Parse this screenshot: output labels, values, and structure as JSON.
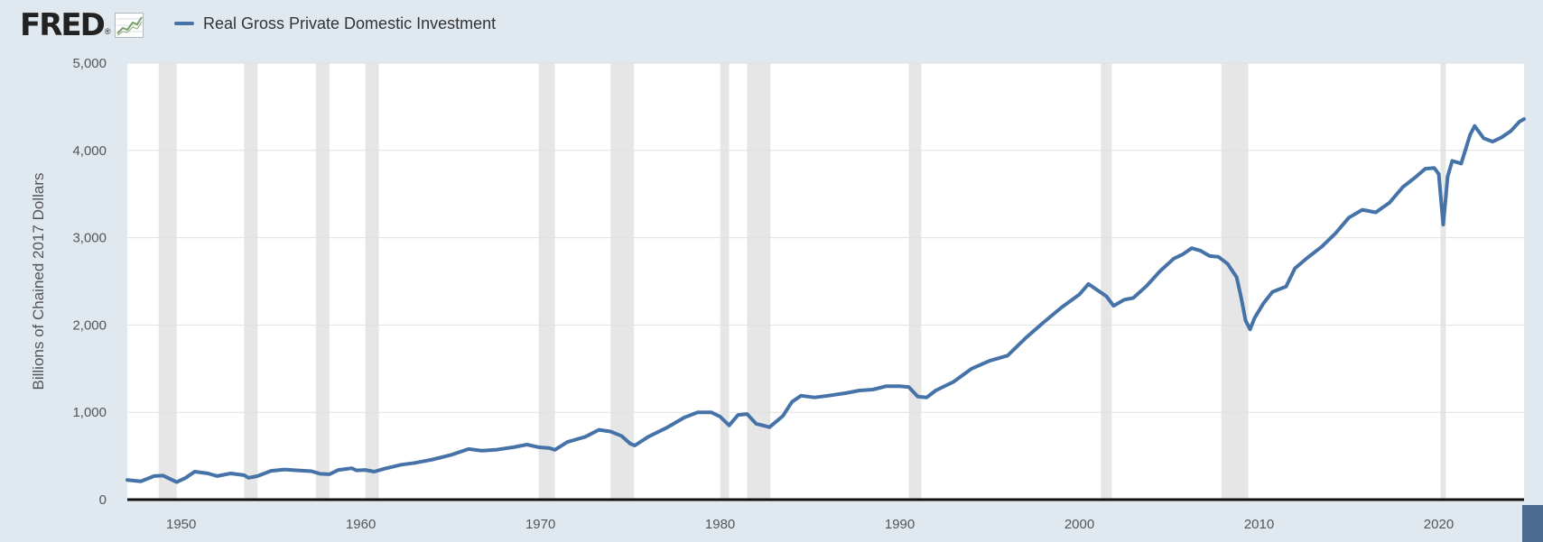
{
  "header": {
    "logo_text": "FRED",
    "logo_registered": "®",
    "logo_icon": "sparkline-chart-icon",
    "series_name": "Real Gross Private Domestic Investment"
  },
  "colors": {
    "series": "#4572a7",
    "background": "#e1e9f0",
    "plot": "#ffffff",
    "recession": "#e6e6e6",
    "grid": "#e0e0e0"
  },
  "chart_data": {
    "type": "line",
    "title": "",
    "xlabel": "",
    "ylabel": "Billions of Chained 2017 Dollars",
    "xlim": [
      1947.0,
      2024.75
    ],
    "ylim": [
      0,
      5000
    ],
    "grid": true,
    "legend_placement": "top-left",
    "x_ticks": [
      1950,
      1960,
      1970,
      1980,
      1990,
      2000,
      2010,
      2020
    ],
    "x_tick_labels": [
      "1950",
      "1960",
      "1970",
      "1980",
      "1990",
      "2000",
      "2010",
      "2020"
    ],
    "y_ticks": [
      0,
      1000,
      2000,
      3000,
      4000,
      5000
    ],
    "y_tick_labels": [
      "0",
      "1,000",
      "2,000",
      "3,000",
      "4,000",
      "5,000"
    ],
    "recessions": [
      [
        1948.75,
        1949.75
      ],
      [
        1953.5,
        1954.25
      ],
      [
        1957.5,
        1958.25
      ],
      [
        1960.25,
        1961.0
      ],
      [
        1969.9,
        1970.8
      ],
      [
        1973.9,
        1975.2
      ],
      [
        1980.0,
        1980.5
      ],
      [
        1981.5,
        1982.8
      ],
      [
        1990.5,
        1991.2
      ],
      [
        2001.2,
        2001.8
      ],
      [
        2007.9,
        2009.4
      ],
      [
        2020.1,
        2020.4
      ]
    ],
    "series": [
      {
        "name": "Real Gross Private Domestic Investment",
        "x": [
          1947.0,
          1947.75,
          1948.5,
          1949.0,
          1949.5,
          1949.75,
          1950.25,
          1950.75,
          1951.5,
          1952.0,
          1952.75,
          1953.5,
          1953.75,
          1954.25,
          1955.0,
          1955.75,
          1956.5,
          1957.25,
          1957.75,
          1958.25,
          1958.75,
          1959.5,
          1959.75,
          1960.25,
          1960.75,
          1961.25,
          1962.25,
          1963.0,
          1964.0,
          1965.0,
          1966.0,
          1966.75,
          1967.5,
          1968.5,
          1969.25,
          1969.9,
          1970.5,
          1970.8,
          1971.5,
          1972.5,
          1973.25,
          1973.9,
          1974.5,
          1975.0,
          1975.25,
          1976.0,
          1977.0,
          1978.0,
          1978.75,
          1979.5,
          1980.0,
          1980.5,
          1981.0,
          1981.5,
          1982.0,
          1982.75,
          1983.5,
          1984.0,
          1984.5,
          1985.25,
          1986.0,
          1987.0,
          1987.75,
          1988.5,
          1989.25,
          1990.0,
          1990.5,
          1991.0,
          1991.5,
          1992.0,
          1993.0,
          1994.0,
          1995.0,
          1996.0,
          1997.0,
          1998.0,
          1999.0,
          2000.0,
          2000.5,
          2001.0,
          2001.5,
          2001.9,
          2002.5,
          2003.0,
          2003.75,
          2004.5,
          2005.25,
          2005.75,
          2006.25,
          2006.75,
          2007.25,
          2007.75,
          2008.25,
          2008.75,
          2009.0,
          2009.25,
          2009.5,
          2009.75,
          2010.25,
          2010.75,
          2011.5,
          2012.0,
          2012.75,
          2013.5,
          2014.25,
          2015.0,
          2015.75,
          2016.5,
          2017.25,
          2018.0,
          2018.75,
          2019.25,
          2019.75,
          2020.0,
          2020.25,
          2020.5,
          2020.75,
          2021.25,
          2021.75,
          2022.0,
          2022.5,
          2023.0,
          2023.5,
          2024.0,
          2024.5,
          2024.75
        ],
        "values": [
          225,
          210,
          270,
          275,
          225,
          200,
          250,
          320,
          300,
          270,
          300,
          280,
          250,
          270,
          330,
          345,
          335,
          325,
          295,
          290,
          340,
          360,
          335,
          340,
          320,
          350,
          400,
          420,
          460,
          510,
          580,
          560,
          570,
          600,
          630,
          600,
          590,
          570,
          660,
          720,
          800,
          780,
          730,
          640,
          620,
          720,
          820,
          940,
          1000,
          1000,
          950,
          850,
          970,
          980,
          870,
          830,
          960,
          1120,
          1190,
          1170,
          1190,
          1220,
          1250,
          1260,
          1300,
          1300,
          1290,
          1180,
          1170,
          1250,
          1350,
          1500,
          1590,
          1650,
          1850,
          2030,
          2200,
          2350,
          2470,
          2400,
          2330,
          2220,
          2290,
          2310,
          2450,
          2620,
          2760,
          2810,
          2880,
          2850,
          2790,
          2780,
          2700,
          2550,
          2320,
          2050,
          1950,
          2080,
          2250,
          2380,
          2440,
          2650,
          2780,
          2900,
          3050,
          3230,
          3320,
          3290,
          3400,
          3580,
          3700,
          3790,
          3800,
          3730,
          3150,
          3700,
          3880,
          3850,
          4180,
          4280,
          4140,
          4100,
          4150,
          4220,
          4330,
          4360
        ]
      }
    ]
  }
}
